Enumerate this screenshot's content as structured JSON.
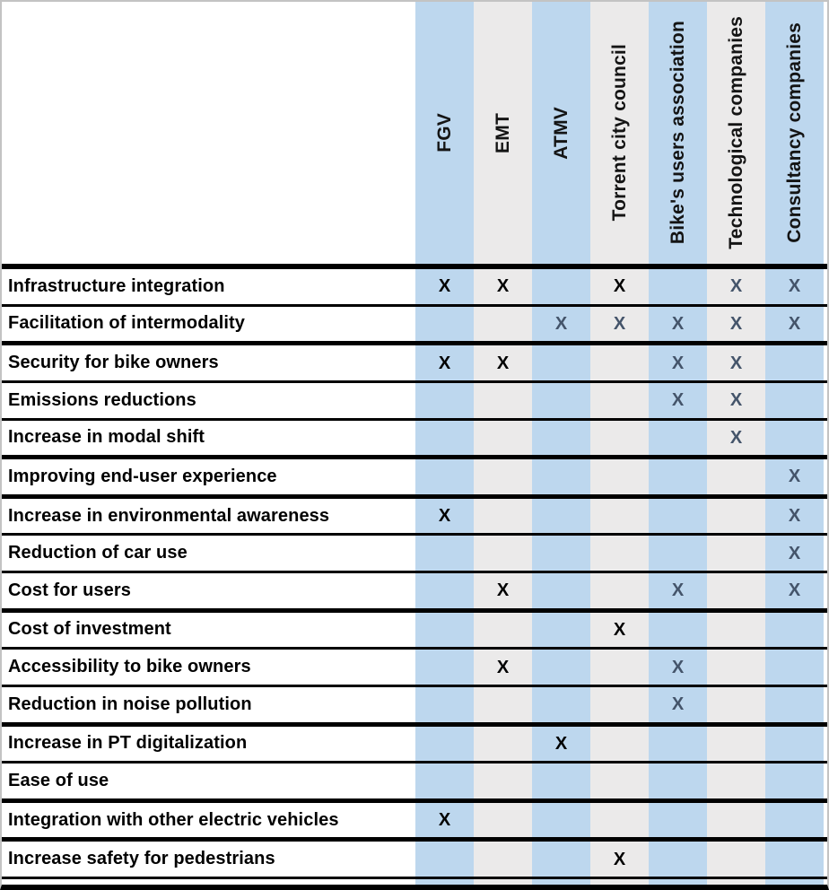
{
  "matrix": {
    "mark_glyph": "X",
    "colors": {
      "column_blue": "#BDD7EE",
      "column_gray": "#EBEAEA",
      "mark_strong": "#000000",
      "mark_light": "#44546A",
      "grid_line": "#000000",
      "outer_frame": "#C3C3C3"
    },
    "columns": [
      {
        "label": "FGV"
      },
      {
        "label": "EMT"
      },
      {
        "label": "ATMV"
      },
      {
        "label": "Torrent city council"
      },
      {
        "label": "Bike's users association"
      },
      {
        "label": "Technological companies"
      },
      {
        "label": "Consultancy companies"
      }
    ],
    "rows": [
      {
        "label": "Infrastructure integration",
        "cells": [
          "strong",
          "strong",
          "",
          "strong",
          "",
          "light",
          "light"
        ],
        "group_end": false
      },
      {
        "label": "Facilitation of intermodality",
        "cells": [
          "",
          "",
          "light",
          "light",
          "light",
          "light",
          "light"
        ],
        "group_end": true
      },
      {
        "label": "Security for bike owners",
        "cells": [
          "strong",
          "strong",
          "",
          "",
          "light",
          "light",
          ""
        ],
        "group_end": false
      },
      {
        "label": "Emissions reductions",
        "cells": [
          "",
          "",
          "",
          "",
          "light",
          "light",
          ""
        ],
        "group_end": false
      },
      {
        "label": "Increase in modal shift",
        "cells": [
          "",
          "",
          "",
          "",
          "",
          "light",
          ""
        ],
        "group_end": true
      },
      {
        "label": "Improving end-user experience",
        "cells": [
          "",
          "",
          "",
          "",
          "",
          "",
          "light"
        ],
        "group_end": true
      },
      {
        "label": "Increase in environmental awareness",
        "cells": [
          "strong",
          "",
          "",
          "",
          "",
          "",
          "light"
        ],
        "group_end": false
      },
      {
        "label": "Reduction of car use",
        "cells": [
          "",
          "",
          "",
          "",
          "",
          "",
          "light"
        ],
        "group_end": false
      },
      {
        "label": "Cost for users",
        "cells": [
          "",
          "strong",
          "",
          "",
          "light",
          "",
          "light"
        ],
        "group_end": true
      },
      {
        "label": "Cost of investment",
        "cells": [
          "",
          "",
          "",
          "strong",
          "",
          "",
          ""
        ],
        "group_end": false
      },
      {
        "label": "Accessibility to bike owners",
        "cells": [
          "",
          "strong",
          "",
          "",
          "light",
          "",
          ""
        ],
        "group_end": false
      },
      {
        "label": "Reduction in noise pollution",
        "cells": [
          "",
          "",
          "",
          "",
          "light",
          "",
          ""
        ],
        "group_end": true
      },
      {
        "label": "Increase in PT digitalization",
        "cells": [
          "",
          "",
          "strong",
          "",
          "",
          "",
          ""
        ],
        "group_end": false
      },
      {
        "label": "Ease of use",
        "cells": [
          "",
          "",
          "",
          "",
          "",
          "",
          ""
        ],
        "group_end": true
      },
      {
        "label": "Integration with other electric vehicles",
        "cells": [
          "strong",
          "",
          "",
          "",
          "",
          "",
          ""
        ],
        "group_end": true
      },
      {
        "label": "Increase safety for pedestrians",
        "cells": [
          "",
          "",
          "",
          "strong",
          "",
          "",
          ""
        ],
        "group_end": false
      }
    ]
  }
}
